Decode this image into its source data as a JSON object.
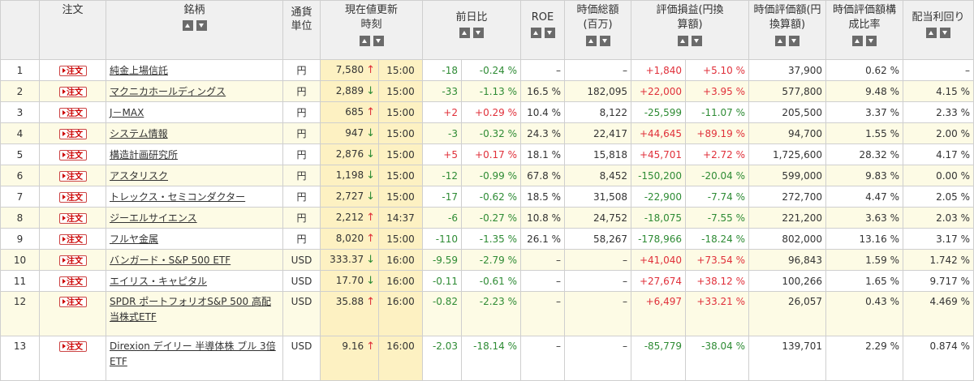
{
  "headers": {
    "order": "注文",
    "name": "銘柄",
    "unit": "通貨単位",
    "price": "現在値更新時刻",
    "change": "前日比",
    "roe": "ROE",
    "mktcap": "時価総額(百万)",
    "pl": "評価損益(円換算額)",
    "value": "時価評価額(円換算額)",
    "ratio": "時価評価額構成比率",
    "yield": "配当利回り"
  },
  "sort": {
    "asc_icon": "sort-ascending-icon",
    "desc_icon": "sort-descending-icon"
  },
  "order_label": "注文",
  "colors": {
    "positive": "#e0303a",
    "negative": "#2e8b34",
    "row_alt": "#fdfbe5",
    "price_cell": "#fdf1c2",
    "header_bg": "#f0f0f0"
  },
  "rows": [
    {
      "no": "1",
      "name": "純金上場信託",
      "unit": "円",
      "price": "7,580",
      "dir": "up",
      "time": "15:00",
      "chg": "-18",
      "chg_pct": "-0.24 %",
      "roe": "–",
      "cap": "–",
      "pl": "+1,840",
      "pl_pct": "+5.10 %",
      "value": "37,900",
      "ratio": "0.62 %",
      "yield": "–"
    },
    {
      "no": "2",
      "name": "マクニカホールディングス",
      "unit": "円",
      "price": "2,889",
      "dir": "down",
      "time": "15:00",
      "chg": "-33",
      "chg_pct": "-1.13 %",
      "roe": "16.5 %",
      "cap": "182,095",
      "pl": "+22,000",
      "pl_pct": "+3.95 %",
      "value": "577,800",
      "ratio": "9.48 %",
      "yield": "4.15 %"
    },
    {
      "no": "3",
      "name": "J－MAX",
      "unit": "円",
      "price": "685",
      "dir": "up",
      "time": "15:00",
      "chg": "+2",
      "chg_pct": "+0.29 %",
      "roe": "10.4 %",
      "cap": "8,122",
      "pl": "-25,599",
      "pl_pct": "-11.07 %",
      "value": "205,500",
      "ratio": "3.37 %",
      "yield": "2.33 %"
    },
    {
      "no": "4",
      "name": "システム情報",
      "unit": "円",
      "price": "947",
      "dir": "down",
      "time": "15:00",
      "chg": "-3",
      "chg_pct": "-0.32 %",
      "roe": "24.3 %",
      "cap": "22,417",
      "pl": "+44,645",
      "pl_pct": "+89.19 %",
      "value": "94,700",
      "ratio": "1.55 %",
      "yield": "2.00 %"
    },
    {
      "no": "5",
      "name": "構造計画研究所",
      "unit": "円",
      "price": "2,876",
      "dir": "down",
      "time": "15:00",
      "chg": "+5",
      "chg_pct": "+0.17 %",
      "roe": "18.1 %",
      "cap": "15,818",
      "pl": "+45,701",
      "pl_pct": "+2.72 %",
      "value": "1,725,600",
      "ratio": "28.32 %",
      "yield": "4.17 %"
    },
    {
      "no": "6",
      "name": "アスタリスク",
      "unit": "円",
      "price": "1,198",
      "dir": "down",
      "time": "15:00",
      "chg": "-12",
      "chg_pct": "-0.99 %",
      "roe": "67.8 %",
      "cap": "8,452",
      "pl": "-150,200",
      "pl_pct": "-20.04 %",
      "value": "599,000",
      "ratio": "9.83 %",
      "yield": "0.00 %"
    },
    {
      "no": "7",
      "name": "トレックス・セミコンダクター",
      "unit": "円",
      "price": "2,727",
      "dir": "down",
      "time": "15:00",
      "chg": "-17",
      "chg_pct": "-0.62 %",
      "roe": "18.5 %",
      "cap": "31,508",
      "pl": "-22,900",
      "pl_pct": "-7.74 %",
      "value": "272,700",
      "ratio": "4.47 %",
      "yield": "2.05 %"
    },
    {
      "no": "8",
      "name": "ジーエルサイエンス",
      "unit": "円",
      "price": "2,212",
      "dir": "up",
      "time": "14:37",
      "chg": "-6",
      "chg_pct": "-0.27 %",
      "roe": "10.8 %",
      "cap": "24,752",
      "pl": "-18,075",
      "pl_pct": "-7.55 %",
      "value": "221,200",
      "ratio": "3.63 %",
      "yield": "2.03 %"
    },
    {
      "no": "9",
      "name": "フルヤ金属",
      "unit": "円",
      "price": "8,020",
      "dir": "up",
      "time": "15:00",
      "chg": "-110",
      "chg_pct": "-1.35 %",
      "roe": "26.1 %",
      "cap": "58,267",
      "pl": "-178,966",
      "pl_pct": "-18.24 %",
      "value": "802,000",
      "ratio": "13.16 %",
      "yield": "3.17 %"
    },
    {
      "no": "10",
      "name": "バンガード・S&P 500 ETF",
      "unit": "USD",
      "price": "333.37",
      "dir": "down",
      "time": "16:00",
      "chg": "-9.59",
      "chg_pct": "-2.79 %",
      "roe": "–",
      "cap": "–",
      "pl": "+41,040",
      "pl_pct": "+73.54 %",
      "value": "96,843",
      "ratio": "1.59 %",
      "yield": "1.742 %"
    },
    {
      "no": "11",
      "name": "エイリス・キャピタル",
      "unit": "USD",
      "price": "17.70",
      "dir": "down",
      "time": "16:00",
      "chg": "-0.11",
      "chg_pct": "-0.61 %",
      "roe": "–",
      "cap": "–",
      "pl": "+27,674",
      "pl_pct": "+38.12 %",
      "value": "100,266",
      "ratio": "1.65 %",
      "yield": "9.717 %"
    },
    {
      "no": "12",
      "name": "SPDR ポートフォリオS&P 500 高配当株式ETF",
      "unit": "USD",
      "price": "35.88",
      "dir": "up",
      "time": "16:00",
      "chg": "-0.82",
      "chg_pct": "-2.23 %",
      "roe": "–",
      "cap": "–",
      "pl": "+6,497",
      "pl_pct": "+33.21 %",
      "value": "26,057",
      "ratio": "0.43 %",
      "yield": "4.469 %"
    },
    {
      "no": "13",
      "name": "Direxion デイリー 半導体株 ブル 3倍 ETF",
      "unit": "USD",
      "price": "9.16",
      "dir": "up",
      "time": "16:00",
      "chg": "-2.03",
      "chg_pct": "-18.14 %",
      "roe": "–",
      "cap": "–",
      "pl": "-85,779",
      "pl_pct": "-38.04 %",
      "value": "139,701",
      "ratio": "2.29 %",
      "yield": "0.874 %"
    }
  ]
}
